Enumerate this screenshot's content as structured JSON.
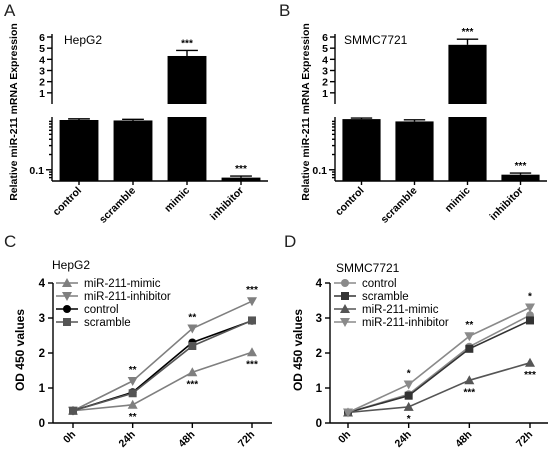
{
  "chart_data": [
    {
      "panel": "A",
      "type": "bar",
      "title": "HepG2",
      "ylabel": "Relative miR-211 mRNA Expression",
      "categories": [
        "control",
        "scramble",
        "mimic",
        "inhibitor"
      ],
      "values": [
        0.96,
        0.94,
        4.3,
        0.07
      ],
      "errors": [
        0.05,
        0.05,
        0.5,
        0.005
      ],
      "significance": [
        "",
        "",
        "***",
        "***"
      ],
      "y_axis_broken": true,
      "ylim_lower": [
        0.06,
        1.1
      ],
      "ylim_upper": [
        0,
        6
      ],
      "yticks_upper": [
        1,
        2,
        3,
        4,
        5,
        6
      ],
      "yticks_lower_labels": [
        "0.1"
      ],
      "bar_color": "#000000"
    },
    {
      "panel": "B",
      "type": "bar",
      "title": "SMMC7721",
      "ylabel": "Relative miR-211 mRNA Expression",
      "categories": [
        "control",
        "scramble",
        "mimic",
        "inhibitor"
      ],
      "values": [
        1.0,
        0.9,
        5.3,
        0.08
      ],
      "errors": [
        0.05,
        0.07,
        0.5,
        0.006
      ],
      "significance": [
        "",
        "",
        "***",
        "***"
      ],
      "y_axis_broken": true,
      "ylim_lower": [
        0.06,
        1.1
      ],
      "ylim_upper": [
        0,
        6
      ],
      "yticks_upper": [
        1,
        2,
        3,
        4,
        5,
        6
      ],
      "yticks_lower_labels": [
        "0.1"
      ],
      "bar_color": "#000000"
    },
    {
      "panel": "C",
      "type": "line",
      "title": "HepG2",
      "ylabel": "OD 450 values",
      "xlabel": "",
      "x": [
        "0h",
        "24h",
        "48h",
        "72h"
      ],
      "ylim": [
        0,
        4
      ],
      "yticks": [
        0,
        1,
        2,
        3,
        4
      ],
      "series": [
        {
          "name": "miR-211-mimic",
          "values": [
            0.35,
            0.52,
            1.45,
            2.02
          ],
          "color": "#7f7f7f",
          "marker": "triangle-up"
        },
        {
          "name": "miR-211-inhibitor",
          "values": [
            0.35,
            1.2,
            2.7,
            3.48
          ],
          "color": "#7f7f7f",
          "marker": "triangle-down"
        },
        {
          "name": "control",
          "values": [
            0.35,
            0.88,
            2.3,
            2.92
          ],
          "color": "#000000",
          "marker": "circle"
        },
        {
          "name": "scramble",
          "values": [
            0.35,
            0.85,
            2.2,
            2.93
          ],
          "color": "#555555",
          "marker": "square"
        }
      ],
      "annotations": [
        {
          "x": "24h",
          "label": "**",
          "position": "above"
        },
        {
          "x": "24h",
          "label": "**",
          "position": "below"
        },
        {
          "x": "48h",
          "label": "**",
          "position": "above"
        },
        {
          "x": "48h",
          "label": "***",
          "position": "below"
        },
        {
          "x": "72h",
          "label": "***",
          "position": "above"
        },
        {
          "x": "72h",
          "label": "***",
          "position": "below"
        }
      ],
      "legend_position": "top-left"
    },
    {
      "panel": "D",
      "type": "line",
      "title": "SMMC7721",
      "ylabel": "OD 450 values",
      "xlabel": "",
      "x": [
        "0h",
        "24h",
        "48h",
        "72h"
      ],
      "ylim": [
        0,
        4
      ],
      "yticks": [
        0,
        1,
        2,
        3,
        4
      ],
      "series": [
        {
          "name": "control",
          "values": [
            0.3,
            0.82,
            2.18,
            3.08
          ],
          "color": "#8a8a8a",
          "marker": "circle"
        },
        {
          "name": "scramble",
          "values": [
            0.3,
            0.78,
            2.12,
            2.93
          ],
          "color": "#333333",
          "marker": "square"
        },
        {
          "name": "miR-211-mimic",
          "values": [
            0.3,
            0.46,
            1.22,
            1.72
          ],
          "color": "#555555",
          "marker": "triangle-up"
        },
        {
          "name": "miR-211-inhibitor",
          "values": [
            0.3,
            1.1,
            2.48,
            3.3
          ],
          "color": "#8a8a8a",
          "marker": "triangle-down"
        }
      ],
      "annotations": [
        {
          "x": "24h",
          "label": "*",
          "position": "above"
        },
        {
          "x": "24h",
          "label": "*",
          "position": "below"
        },
        {
          "x": "48h",
          "label": "**",
          "position": "above"
        },
        {
          "x": "48h",
          "label": "***",
          "position": "below"
        },
        {
          "x": "72h",
          "label": "*",
          "position": "above"
        },
        {
          "x": "72h",
          "label": "***",
          "position": "below"
        }
      ],
      "legend_position": "top-left"
    }
  ]
}
